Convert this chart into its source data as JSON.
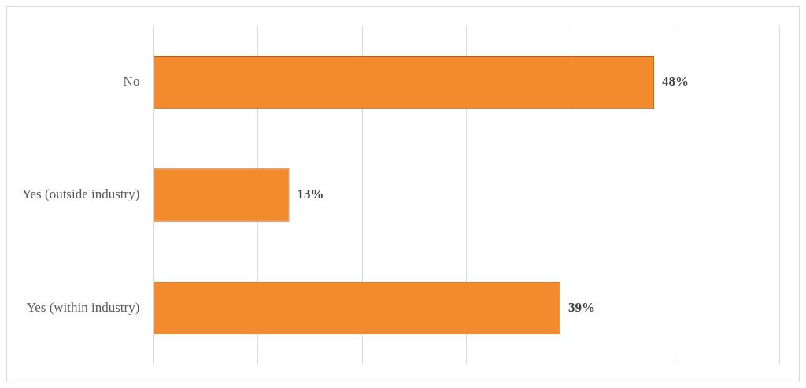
{
  "chart_data": {
    "type": "bar",
    "orientation": "horizontal",
    "categories": [
      "No",
      "Yes (outside industry)",
      "Yes (within industry)"
    ],
    "values": [
      48,
      13,
      39
    ],
    "value_labels": [
      "48%",
      "13%",
      "39%"
    ],
    "color": "#f28a2e",
    "xlim": [
      0,
      60
    ],
    "xticks": [
      {
        "value": 0,
        "label": null
      },
      {
        "value": 10,
        "label": null
      },
      {
        "value": 20,
        "label": null
      },
      {
        "value": 30,
        "label": null
      },
      {
        "value": 40,
        "label": null
      },
      {
        "value": 50,
        "label": null
      },
      {
        "value": 60,
        "label": null
      }
    ],
    "tick_labels": "y",
    "grid": "x",
    "legend": false
  }
}
